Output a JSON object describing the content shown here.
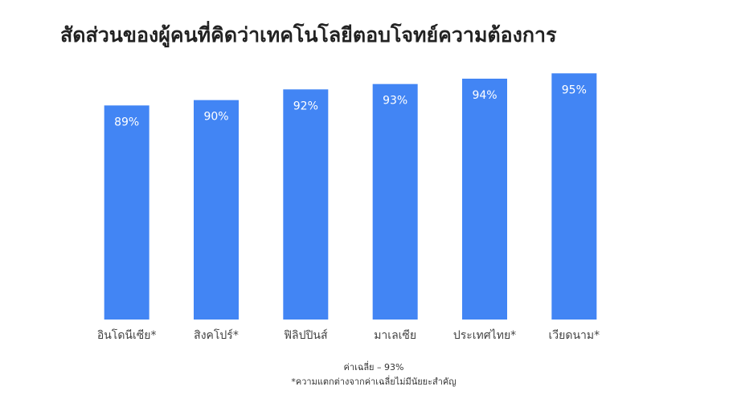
{
  "chart_data": {
    "type": "bar",
    "title": "สัดส่วนของผู้คนที่คิดว่าเทคโนโลยีตอบโจทย์ความต้องการ",
    "categories": [
      "อินโดนีเซีย*",
      "สิงคโปร์*",
      "ฟิลิปปินส์",
      "มาเลเซีย",
      "ประเทศไทย*",
      "เวียดนาม*"
    ],
    "values": [
      89,
      90,
      92,
      93,
      94,
      95
    ],
    "value_labels": [
      "89%",
      "90%",
      "92%",
      "93%",
      "94%",
      "95%"
    ],
    "color": "#4285f4",
    "ylim": [
      49,
      100
    ],
    "notes": [
      "ค่าเฉลี่ย – 93%",
      "*ความแตกต่างจากค่าเฉลี่ยไม่มีนัยยะสำคัญ"
    ]
  }
}
